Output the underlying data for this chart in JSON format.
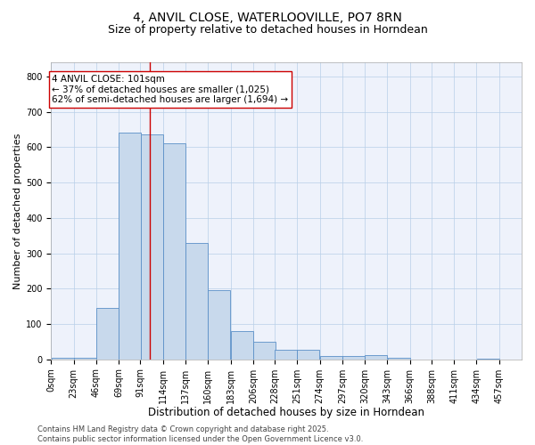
{
  "title1": "4, ANVIL CLOSE, WATERLOOVILLE, PO7 8RN",
  "title2": "Size of property relative to detached houses in Horndean",
  "xlabel": "Distribution of detached houses by size in Horndean",
  "ylabel": "Number of detached properties",
  "bins": [
    0,
    23,
    46,
    69,
    91,
    114,
    137,
    160,
    183,
    206,
    228,
    251,
    274,
    297,
    320,
    343,
    366,
    388,
    411,
    434,
    457
  ],
  "bin_labels": [
    "0sqm",
    "23sqm",
    "46sqm",
    "69sqm",
    "91sqm",
    "114sqm",
    "137sqm",
    "160sqm",
    "183sqm",
    "206sqm",
    "228sqm",
    "251sqm",
    "274sqm",
    "297sqm",
    "320sqm",
    "343sqm",
    "366sqm",
    "388sqm",
    "411sqm",
    "434sqm",
    "457sqm"
  ],
  "counts": [
    5,
    5,
    145,
    640,
    635,
    610,
    330,
    195,
    80,
    50,
    28,
    28,
    10,
    10,
    12,
    5,
    0,
    0,
    0,
    3,
    0
  ],
  "bar_color": "#c8d9ec",
  "bar_edge_color": "#5b8fc7",
  "property_line_x": 101,
  "property_line_color": "#cc0000",
  "annotation_text": "4 ANVIL CLOSE: 101sqm\n← 37% of detached houses are smaller (1,025)\n62% of semi-detached houses are larger (1,694) →",
  "annotation_box_color": "#ffffff",
  "annotation_box_edge_color": "#cc0000",
  "ylim": [
    0,
    840
  ],
  "yticks": [
    0,
    100,
    200,
    300,
    400,
    500,
    600,
    700,
    800
  ],
  "grid_color": "#b8cfe8",
  "background_color": "#eef2fb",
  "footer_text": "Contains HM Land Registry data © Crown copyright and database right 2025.\nContains public sector information licensed under the Open Government Licence v3.0.",
  "title1_fontsize": 10,
  "title2_fontsize": 9,
  "xlabel_fontsize": 8.5,
  "ylabel_fontsize": 8,
  "tick_fontsize": 7,
  "footer_fontsize": 6,
  "ann_fontsize": 7.5
}
